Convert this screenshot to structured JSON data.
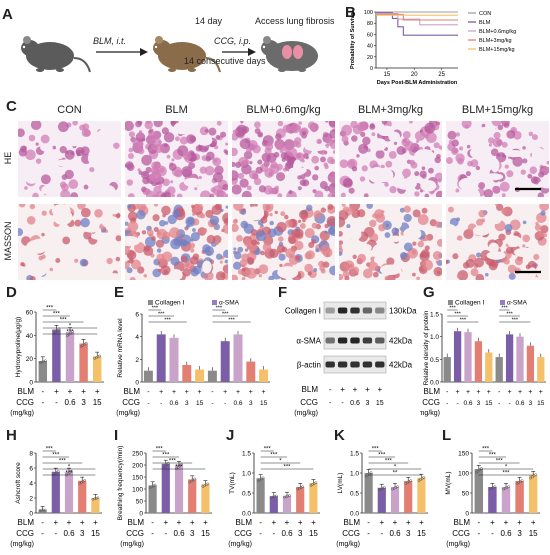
{
  "panels": {
    "A": "A",
    "B": "B",
    "C": "C",
    "D": "D",
    "E": "E",
    "F": "F",
    "G": "G",
    "H": "H",
    "I": "I",
    "J": "J",
    "K": "K",
    "L": "L"
  },
  "panel_a": {
    "step1": "BLM, i.t.",
    "step2_top": "14 day",
    "step2": "CCG, i.p.",
    "step2_bottom": "14 consecutive days",
    "step3": "Access lung fibrosis"
  },
  "panel_b_chart": {
    "type": "line",
    "ylabel": "Probability of Survival",
    "xlabel": "Days Post-BLM Administration",
    "x_ticks": [
      "15",
      "20",
      "25"
    ],
    "y_ticks": [
      "0",
      "20",
      "40",
      "60",
      "80",
      "100"
    ],
    "xlim": [
      13,
      28
    ],
    "ylim": [
      0,
      100
    ],
    "series": [
      {
        "name": "CON",
        "color": "#9e9e9e",
        "x": [
          13,
          28
        ],
        "y": [
          100,
          100
        ]
      },
      {
        "name": "BLM",
        "color": "#7b5ea7",
        "x": [
          13,
          16,
          16,
          17,
          17,
          18,
          18,
          28
        ],
        "y": [
          100,
          100,
          90,
          90,
          75,
          75,
          60,
          60
        ]
      },
      {
        "name": "BLM+0.6mg/kg",
        "color": "#c9a3c9",
        "x": [
          13,
          17,
          17,
          21,
          21,
          28
        ],
        "y": [
          100,
          100,
          90,
          90,
          80,
          80
        ]
      },
      {
        "name": "BLM+3mg/kg",
        "color": "#e37f72",
        "x": [
          13,
          18,
          18,
          28
        ],
        "y": [
          100,
          100,
          90,
          90
        ]
      },
      {
        "name": "BLM+15mg/kg",
        "color": "#f4c06a",
        "x": [
          13,
          28
        ],
        "y": [
          100,
          100
        ]
      }
    ]
  },
  "panel_c": {
    "groups": [
      "CON",
      "BLM",
      "BLM+0.6mg/kg",
      "BLM+3mg/kg",
      "BLM+15mg/kg"
    ],
    "rows": [
      "HE",
      "MASSON"
    ]
  },
  "axis_rows": {
    "blm_label": "BLM",
    "ccg_label": "CCG",
    "unit_label": "(mg/kg)",
    "blm_signs": [
      "-",
      "+",
      "+",
      "+",
      "+"
    ],
    "ccg_doses": [
      "-",
      "-",
      "0.6",
      "3",
      "15"
    ]
  },
  "colors": [
    "#8a8a8a",
    "#7b5ea7",
    "#c9a3c9",
    "#e37f72",
    "#f4c06a"
  ],
  "charts": {
    "D": {
      "type": "bar",
      "ylabel": "Hydroxyproline(μg/g)",
      "y_ticks": [
        "0",
        "20",
        "40",
        "60"
      ],
      "ylim": [
        0,
        60
      ],
      "values": [
        18,
        45,
        43,
        33,
        22
      ],
      "sig": [
        "***",
        "***",
        "***",
        "*",
        "***"
      ]
    },
    "H": {
      "type": "bar",
      "ylabel": "Ashcroft score",
      "y_ticks": [
        "0",
        "2",
        "4",
        "6",
        "8"
      ],
      "ylim": [
        0,
        8
      ],
      "values": [
        0.4,
        5.5,
        5.5,
        4.3,
        2.0
      ],
      "sig": [
        "***",
        "***",
        "***",
        "*",
        "***"
      ]
    },
    "I": {
      "type": "bar",
      "ylabel": "Breathing frequency(/min)",
      "y_ticks": [
        "0",
        "50",
        "100",
        "150",
        "200",
        "250"
      ],
      "ylim": [
        0,
        250
      ],
      "values": [
        115,
        205,
        200,
        140,
        120
      ],
      "sig": [
        "***",
        "***",
        "***",
        "***"
      ]
    },
    "J": {
      "type": "bar",
      "ylabel": "TV(mL)",
      "y_ticks": [
        "0.0",
        "0.5",
        "1.0",
        "1.5"
      ],
      "ylim": [
        0,
        1.5
      ],
      "values": [
        0.87,
        0.42,
        0.43,
        0.65,
        0.75
      ],
      "sig": [
        "***",
        "***",
        "*",
        "***"
      ]
    },
    "K": {
      "type": "bar",
      "ylabel": "LV(mL)",
      "y_ticks": [
        "0.0",
        "0.5",
        "1.0",
        "1.5"
      ],
      "ylim": [
        0,
        1.5
      ],
      "values": [
        1.0,
        0.63,
        0.65,
        0.8,
        0.88
      ],
      "sig": [
        "***",
        "***",
        "***",
        "*",
        "**"
      ]
    },
    "L": {
      "type": "bar",
      "ylabel": "MV(mL)",
      "y_ticks": [
        "0",
        "50",
        "100",
        "150"
      ],
      "ylim": [
        0,
        150
      ],
      "values": [
        110,
        65,
        65,
        80,
        95
      ],
      "sig": [
        "***",
        "***",
        "***",
        "*",
        "***"
      ]
    }
  },
  "chart_E": {
    "type": "bar",
    "ylabel": "Relative mRNA level",
    "y_ticks": [
      "0",
      "2",
      "4",
      "6"
    ],
    "ylim": [
      0,
      6
    ],
    "legend": [
      "Collagen Ⅰ",
      "α-SMA"
    ],
    "series": [
      {
        "name": "Collagen Ⅰ",
        "values": [
          1.0,
          4.2,
          3.9,
          1.5,
          1.1
        ]
      },
      {
        "name": "α-SMA",
        "values": [
          1.0,
          3.6,
          4.2,
          1.8,
          1.1
        ]
      }
    ]
  },
  "chart_G": {
    "type": "bar",
    "ylabel": "Relative density of protein",
    "y_ticks": [
      "0.0",
      "0.5",
      "1.0",
      "1.5"
    ],
    "ylim": [
      0,
      1.5
    ],
    "legend": [
      "Collagen Ⅰ",
      "α-SMA"
    ],
    "series": [
      {
        "name": "Collagen Ⅰ",
        "values": [
          0.55,
          1.12,
          1.1,
          0.9,
          0.65
        ]
      },
      {
        "name": "α-SMA",
        "values": [
          0.55,
          1.05,
          1.0,
          0.8,
          0.55
        ]
      }
    ]
  },
  "panel_f": {
    "labels": [
      "Collagen Ⅰ",
      "α-SMA",
      "β-actin"
    ],
    "kda": [
      "130kDa",
      "42kDa",
      "42kDa"
    ],
    "blm_signs": [
      "-",
      "+",
      "+",
      "+",
      "+"
    ],
    "ccg_doses": [
      "-",
      "-",
      "0.6",
      "3",
      "15"
    ]
  }
}
